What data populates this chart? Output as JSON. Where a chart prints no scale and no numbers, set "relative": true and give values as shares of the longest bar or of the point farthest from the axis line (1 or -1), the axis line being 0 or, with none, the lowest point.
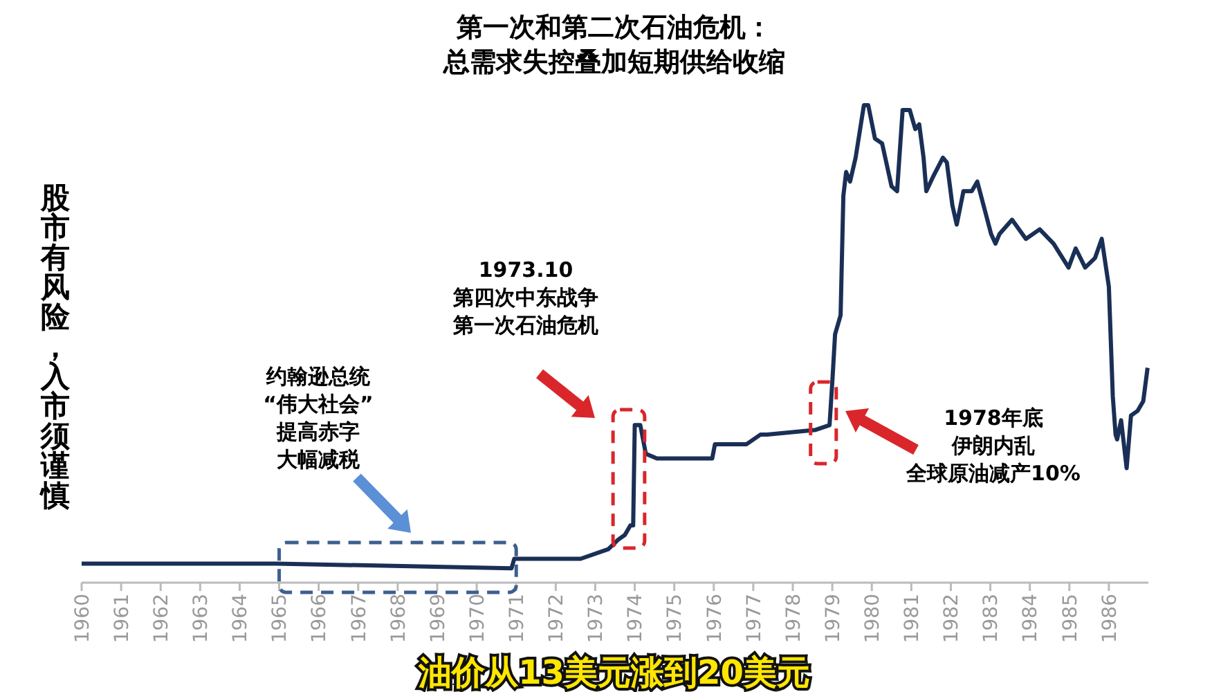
{
  "chart_data": {
    "type": "line",
    "relative": true,
    "title": "第一次和第二次石油危机：总需求失控叠加短期供给收缩",
    "annotations": [
      "股市有风险，入市须谨慎",
      "约翰逊总统“伟大社会”提高赤字大幅减税",
      "1973.10第四次中东战争第一次石油危机",
      "1978年底伊朗内乱全球原油减产10%",
      "油价从13美元涨到20美元"
    ],
    "xlim": [
      1960,
      1987
    ],
    "xticks": [
      1960,
      1961,
      1962,
      1963,
      1964,
      1965,
      1966,
      1967,
      1968,
      1969,
      1970,
      1971,
      1972,
      1973,
      1974,
      1975,
      1976,
      1977,
      1978,
      1979,
      1980,
      1981,
      1982,
      1983,
      1984,
      1985,
      1986
    ],
    "grid": false,
    "marker": "none",
    "line_style": "solid",
    "series": [
      {
        "color": "#1a2f55",
        "x": [
          1960,
          1964.93,
          1970.88,
          1970.95,
          1972.63,
          1973.33,
          1973.58,
          1973.75,
          1973.89,
          1973.96,
          1974.0,
          1974.14,
          1974.28,
          1974.56,
          1974.98,
          1975.96,
          1976.03,
          1976.83,
          1977.18,
          1977.35,
          1978.58,
          1978.93,
          1979.0,
          1979.07,
          1979.21,
          1979.28,
          1979.35,
          1979.45,
          1979.59,
          1979.8,
          1979.91,
          1980.08,
          1980.26,
          1980.5,
          1980.64,
          1980.78,
          1980.96,
          1981.1,
          1981.2,
          1981.31,
          1981.38,
          1981.55,
          1981.8,
          1981.9,
          1982.04,
          1982.15,
          1982.32,
          1982.53,
          1982.67,
          1983.02,
          1983.13,
          1983.23,
          1983.55,
          1983.9,
          1984.25,
          1984.6,
          1984.98,
          1985.16,
          1985.4,
          1985.65,
          1985.82,
          1986.0,
          1986.1,
          1986.17,
          1986.21,
          1986.31,
          1986.45,
          1986.56,
          1986.73,
          1986.87,
          1986.98
        ],
        "values": [
          0.04,
          0.04,
          0.03,
          0.05,
          0.05,
          0.07,
          0.09,
          0.1,
          0.12,
          0.12,
          0.33,
          0.33,
          0.27,
          0.26,
          0.26,
          0.26,
          0.29,
          0.29,
          0.31,
          0.31,
          0.32,
          0.33,
          0.42,
          0.52,
          0.56,
          0.81,
          0.86,
          0.84,
          0.89,
          1.0,
          1.0,
          0.93,
          0.92,
          0.83,
          0.82,
          0.99,
          0.99,
          0.95,
          0.96,
          0.89,
          0.82,
          0.85,
          0.89,
          0.88,
          0.79,
          0.75,
          0.82,
          0.82,
          0.84,
          0.73,
          0.71,
          0.73,
          0.76,
          0.72,
          0.74,
          0.71,
          0.66,
          0.7,
          0.66,
          0.68,
          0.72,
          0.62,
          0.39,
          0.31,
          0.3,
          0.34,
          0.24,
          0.35,
          0.36,
          0.38,
          0.45
        ]
      }
    ]
  }
}
